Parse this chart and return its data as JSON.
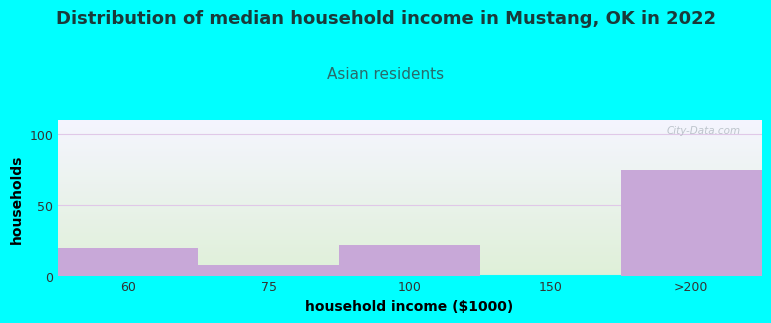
{
  "title": "Distribution of median household income in Mustang, OK in 2022",
  "subtitle": "Asian residents",
  "xlabel": "household income ($1000)",
  "ylabel": "households",
  "categories": [
    "60",
    "75",
    "100",
    "150",
    ">200"
  ],
  "values": [
    20,
    8,
    22,
    0,
    75
  ],
  "bar_color": "#c8a8d8",
  "bar_edge_color": "#c8a8d8",
  "background_color": "#00FFFF",
  "plot_bg_top": "#f5f5ff",
  "plot_bg_bottom": "#dff0d8",
  "ylim": [
    0,
    110
  ],
  "yticks": [
    0,
    50,
    100
  ],
  "title_fontsize": 13,
  "subtitle_fontsize": 11,
  "axis_label_fontsize": 10,
  "title_color": "#1a3a3a",
  "subtitle_color": "#2a6a6a",
  "tick_color": "#333333",
  "watermark": "City-Data.com",
  "grid_color": "#e0c8e8"
}
